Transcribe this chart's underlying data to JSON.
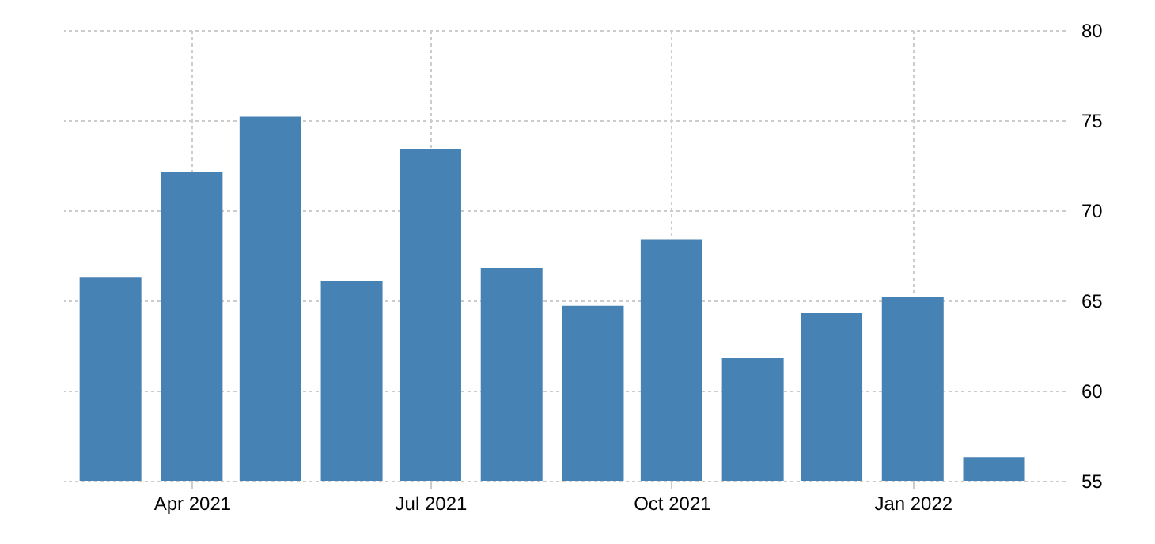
{
  "chart_data": {
    "type": "bar",
    "x": [
      "2021-03",
      "2021-04",
      "2021-05",
      "2021-06",
      "2021-07",
      "2021-08",
      "2021-09",
      "2021-10",
      "2021-11",
      "2021-12",
      "2022-01",
      "2022-02"
    ],
    "values": [
      66.3,
      72.1,
      75.2,
      66.1,
      73.4,
      66.8,
      64.7,
      68.4,
      61.8,
      64.3,
      65.2,
      56.3
    ],
    "color": "#4682b4",
    "xlim": [
      "2021-02-11",
      "2022-02-28"
    ],
    "xticks": [
      {
        "value": "2021-04",
        "label": "Apr 2021"
      },
      {
        "value": "2021-07",
        "label": "Jul 2021"
      },
      {
        "value": "2021-10",
        "label": "Oct 2021"
      },
      {
        "value": "2022-01",
        "label": "Jan 2022"
      }
    ],
    "ylim": [
      55,
      80
    ],
    "yticks": [
      55,
      60,
      65,
      70,
      75,
      80
    ],
    "grid": true
  }
}
